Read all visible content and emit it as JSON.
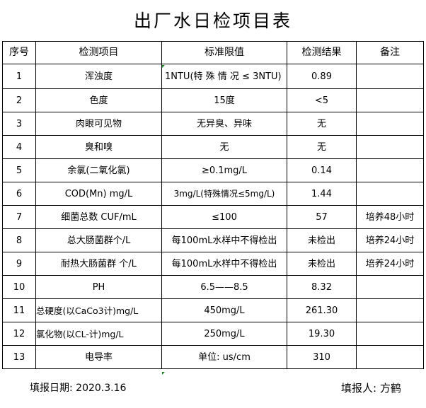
{
  "title": "出厂水日检项目表",
  "headers": [
    "序号",
    "检测项目",
    "标准限值",
    "检测结果",
    "备注"
  ],
  "rows": [
    [
      "1",
      "浑浊度",
      "1NTU(特 殊 情 况 ≤ 3NTU)",
      "0.89",
      ""
    ],
    [
      "2",
      "色度",
      "15度",
      "<5",
      ""
    ],
    [
      "3",
      "肉眼可见物",
      "无异臭、异味",
      "无",
      ""
    ],
    [
      "4",
      "臭和嗅",
      "无",
      "无",
      ""
    ],
    [
      "5",
      "余氯(二氧化氯)",
      "≥0.1mg/L",
      "0.14",
      ""
    ],
    [
      "6",
      "COD(Mn)   mg/L",
      "3mg/L(特殊情况≤5mg/L)",
      "1.44",
      ""
    ],
    [
      "7",
      "细菌总数 CUF/mL",
      "≤100",
      "57",
      "培养48小时"
    ],
    [
      "8",
      "总大肠菌群个/L",
      "每100mL水样中不得检出",
      "未检出",
      "培养24小时"
    ],
    [
      "9",
      "耐热大肠菌群 个/L",
      "每100mL水样中不得检出",
      "未检出",
      "培养24小时"
    ],
    [
      "10",
      "PH",
      "6.5——8.5",
      "8.32",
      ""
    ],
    [
      "11",
      "总硬度(以CaCo3计)mg/L",
      "450mg/L",
      "261.30",
      ""
    ],
    [
      "12",
      "氯化物(以CL-计)mg/L",
      "250mg/L",
      "19.30",
      ""
    ],
    [
      "13",
      "电导率",
      "单位: us/cm",
      "310",
      ""
    ]
  ],
  "footer": {
    "date": "填报日期: 2020.3.16",
    "reporter": "填报人: 方鹤"
  }
}
